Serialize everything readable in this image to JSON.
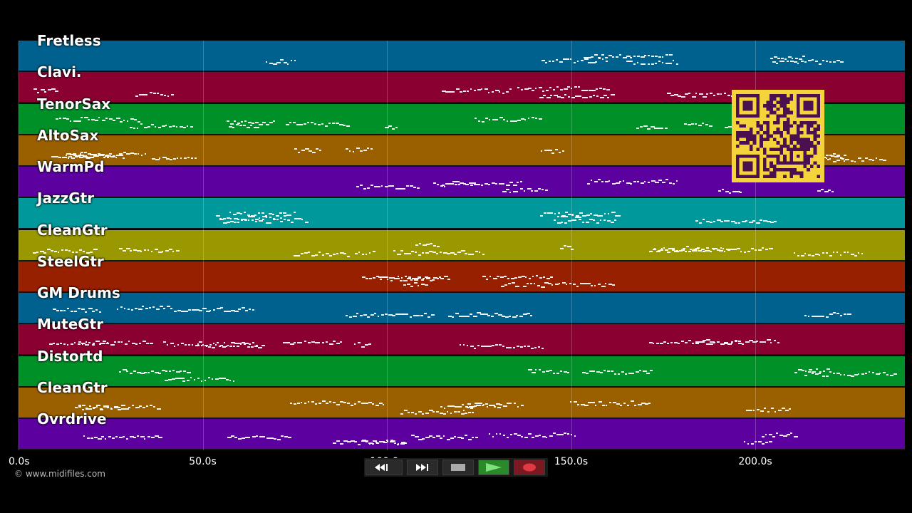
{
  "tracks": [
    {
      "name": "Fretless",
      "color": "#00608e"
    },
    {
      "name": "Clavi.",
      "color": "#8a0030"
    },
    {
      "name": "TenorSax",
      "color": "#009028"
    },
    {
      "name": "AltoSax",
      "color": "#9a6000"
    },
    {
      "name": "WarmPd",
      "color": "#5c00a0"
    },
    {
      "name": "JazzGtr",
      "color": "#00989a"
    },
    {
      "name": "CleanGtr",
      "color": "#9a9800"
    },
    {
      "name": "SteelGtr",
      "color": "#962000"
    },
    {
      "name": "GM Drums",
      "color": "#00608e"
    },
    {
      "name": "MuteGtr",
      "color": "#8a0030"
    },
    {
      "name": "Distortd",
      "color": "#009028"
    },
    {
      "name": "CleanGtr",
      "color": "#9a6000"
    },
    {
      "name": "Ovrdrive",
      "color": "#5c00a0"
    }
  ],
  "timeline": {
    "ticks": [
      "0.0s",
      "50.0s",
      "100.0s",
      "150.0s",
      "200.0s"
    ]
  },
  "copyright": "© www.midifiles.com",
  "transport": {
    "rewind_icon": "rewind-icon",
    "forward_icon": "fast-forward-icon",
    "stop_icon": "stop-icon",
    "play_icon": "play-icon",
    "record_icon": "record-icon",
    "play_color": "#2a8a2a",
    "record_color": "#d0303a"
  },
  "qr_code": {
    "color": "#f5d33a",
    "fg": "#4a1050"
  }
}
